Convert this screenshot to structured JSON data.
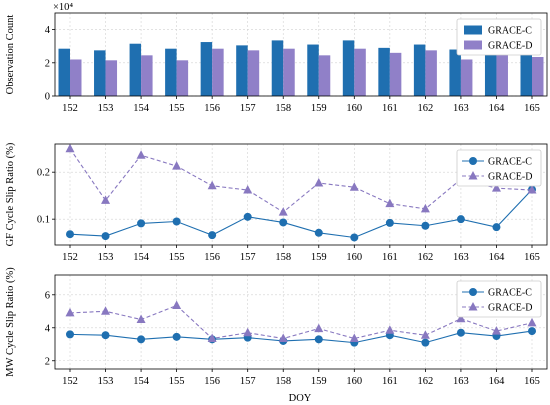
{
  "xlabel": "DOY",
  "colors": {
    "grace_c": "#1f6fb0",
    "grace_d": "#9080c8",
    "grace_d_line": "#8878c0"
  },
  "chart_data": [
    {
      "type": "bar",
      "categories": [
        "152",
        "153",
        "154",
        "155",
        "156",
        "157",
        "158",
        "159",
        "160",
        "161",
        "162",
        "163",
        "164",
        "165"
      ],
      "ylabel": "Observation Count",
      "scale_label": "×10⁴",
      "ylim": [
        0,
        5
      ],
      "yticks": [
        "0",
        "2",
        "4"
      ],
      "grid": true,
      "legend_position": "top-right",
      "series": [
        {
          "name": "GRACE-C",
          "values": [
            2.85,
            2.75,
            3.15,
            2.85,
            3.25,
            3.05,
            3.35,
            3.1,
            3.35,
            2.9,
            3.1,
            2.8,
            3.1,
            2.7
          ]
        },
        {
          "name": "GRACE-D",
          "values": [
            2.2,
            2.15,
            2.45,
            2.15,
            2.85,
            2.75,
            2.85,
            2.45,
            2.85,
            2.6,
            2.75,
            2.2,
            2.5,
            2.35
          ]
        }
      ]
    },
    {
      "type": "line",
      "categories": [
        "152",
        "153",
        "154",
        "155",
        "156",
        "157",
        "158",
        "159",
        "160",
        "161",
        "162",
        "163",
        "164",
        "165"
      ],
      "ylabel": "GF Cycle Slip Ratio (%)",
      "ylim": [
        0.045,
        0.26
      ],
      "yticks": [
        "0.1",
        "0.2"
      ],
      "grid": true,
      "legend_position": "top-right",
      "series": [
        {
          "name": "GRACE-C",
          "values": [
            0.068,
            0.064,
            0.091,
            0.095,
            0.066,
            0.105,
            0.093,
            0.071,
            0.061,
            0.092,
            0.086,
            0.1,
            0.083,
            0.163
          ]
        },
        {
          "name": "GRACE-D",
          "values": [
            0.25,
            0.14,
            0.236,
            0.213,
            0.171,
            0.162,
            0.115,
            0.177,
            0.168,
            0.133,
            0.122,
            0.185,
            0.166,
            0.162
          ]
        }
      ]
    },
    {
      "type": "line",
      "categories": [
        "152",
        "153",
        "154",
        "155",
        "156",
        "157",
        "158",
        "159",
        "160",
        "161",
        "162",
        "163",
        "164",
        "165"
      ],
      "ylabel": "MW Cycle Slip Ratio (%)",
      "ylim": [
        1.5,
        7.2
      ],
      "yticks": [
        "2",
        "4",
        "6"
      ],
      "grid": true,
      "legend_position": "top-right",
      "series": [
        {
          "name": "GRACE-C",
          "values": [
            3.6,
            3.55,
            3.3,
            3.45,
            3.3,
            3.4,
            3.2,
            3.3,
            3.1,
            3.55,
            3.1,
            3.7,
            3.5,
            3.8
          ]
        },
        {
          "name": "GRACE-D",
          "values": [
            4.9,
            5.0,
            4.5,
            5.35,
            3.35,
            3.7,
            3.35,
            3.95,
            3.35,
            3.85,
            3.55,
            4.55,
            3.8,
            4.3
          ]
        }
      ]
    }
  ]
}
